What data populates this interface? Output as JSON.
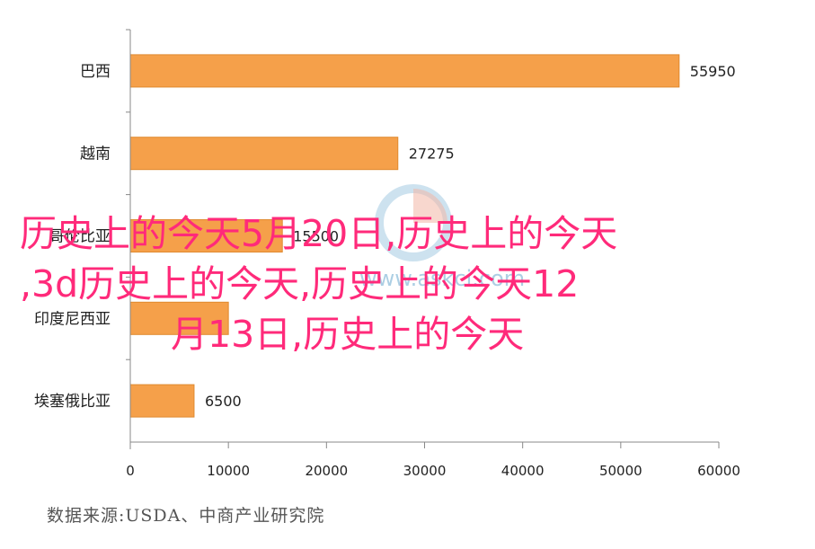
{
  "chart_data": {
    "type": "bar",
    "orientation": "horizontal",
    "categories": [
      "巴西",
      "越南",
      "哥伦比亚",
      "印度尼西亚",
      "埃塞俄比亚"
    ],
    "values": [
      55950,
      27275,
      15500,
      10000,
      6500
    ],
    "value_labels": [
      "55950",
      "27275",
      "15500",
      "",
      "6500"
    ],
    "xlim": [
      0,
      60000
    ],
    "xticks": [
      "0",
      "10000",
      "20000",
      "30000",
      "40000",
      "50000",
      "60000"
    ],
    "bar_color": "#f5a04a",
    "bar_edge_color": "#e08a30",
    "grid": false,
    "title": "",
    "xlabel": "",
    "ylabel": ""
  },
  "source_note": "数据来源:USDA、中商产业研究院",
  "overlay_text": {
    "line1": "历史上的今天5月20日,历史上的今天",
    "line2": ",3d历史上的今天,历史上的今天12",
    "line3": "月13日,历史上的今天"
  },
  "watermark": {
    "text": "www.askci.com",
    "color": "#6aa8cf"
  }
}
